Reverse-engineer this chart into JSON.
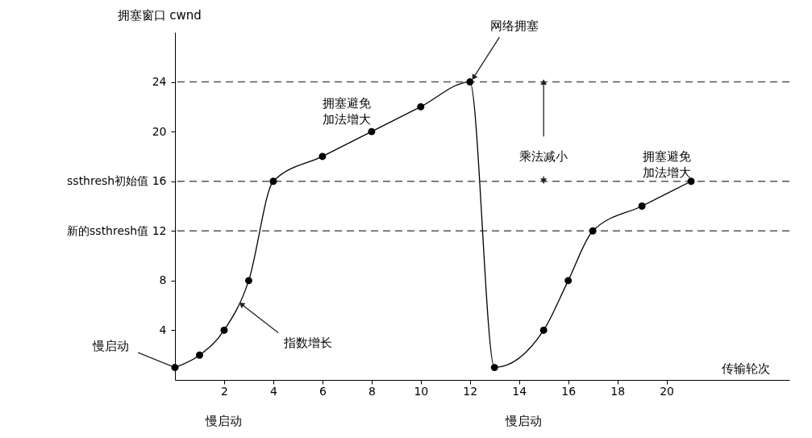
{
  "chart_data": {
    "type": "line",
    "xlabel": "传输轮次",
    "ylabel": "拥塞窗口 cwnd",
    "x": [
      0,
      1,
      2,
      3,
      4,
      6,
      8,
      10,
      12,
      13,
      15,
      16,
      17,
      19,
      21
    ],
    "series": [
      {
        "color": "#000000",
        "values": [
          1,
          2,
          4,
          8,
          16,
          18,
          20,
          22,
          24,
          1,
          4,
          8,
          12,
          14,
          16
        ]
      }
    ],
    "xlim": [
      0,
      25
    ],
    "ylim": [
      0,
      28
    ],
    "xticks": [
      2,
      4,
      6,
      8,
      10,
      12,
      14,
      16,
      18,
      20
    ],
    "yticks": [
      4,
      8,
      {
        "value": 12,
        "label": "新的ssthresh值 12"
      },
      {
        "value": 16,
        "label": "ssthresh初始值 16"
      },
      20,
      24
    ],
    "ref_lines": [
      {
        "axis": "y",
        "value": 24,
        "label": null,
        "color": "#555555",
        "line_style": "dashed"
      },
      {
        "axis": "y",
        "value": 16,
        "label": null,
        "color": "#555555",
        "line_style": "dashed"
      },
      {
        "axis": "y",
        "value": 12,
        "label": null,
        "color": "#555555",
        "line_style": "dashed"
      }
    ],
    "annotations": [
      {
        "text": "网络拥塞",
        "x": 12,
        "y": 24
      },
      {
        "text": "拥塞避免加法增大",
        "x": 7,
        "y": 19
      },
      {
        "text": "乘法减小",
        "x": 15,
        "y": 24
      },
      {
        "text": "指数增长",
        "x": 2.7,
        "y": 6.1
      },
      {
        "text": "慢启动",
        "x": 0,
        "y": 1
      },
      {
        "text": "拥塞避免加法增大",
        "x": 20,
        "y": 15
      },
      "慢启动",
      "慢启动"
    ],
    "grid": false,
    "marker": "circle",
    "line_style": "solid"
  }
}
